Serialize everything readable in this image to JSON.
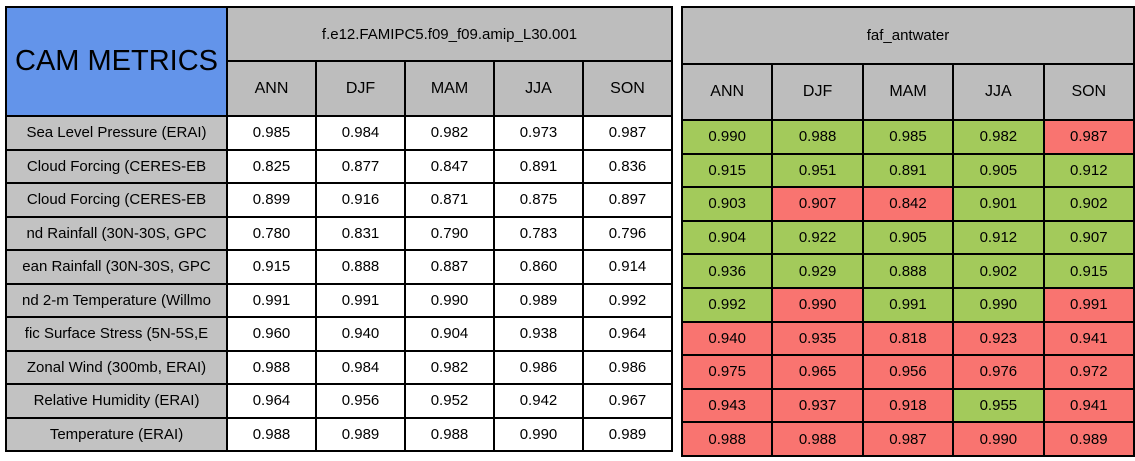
{
  "colors": {
    "title_bg": "#6394EA",
    "header_bg": "#BDBDBD",
    "label_bg": "#C2C2C2",
    "baseline_cell_bg": "#FFFFFF",
    "good": "#A3CA5B",
    "bad": "#F97470",
    "border": "#000000"
  },
  "chart_data": {
    "type": "table",
    "title": "CAM METRICS",
    "groups": [
      {
        "name": "f.e12.FAMIPC5.f09_f09.amip_L30.001",
        "seasons": [
          "ANN",
          "DJF",
          "MAM",
          "JJA",
          "SON"
        ]
      },
      {
        "name": "faf_antwater",
        "seasons": [
          "ANN",
          "DJF",
          "MAM",
          "JJA",
          "SON"
        ]
      }
    ],
    "rows": [
      {
        "label": "Sea Level Pressure (ERAI)",
        "baseline": [
          "0.985",
          "0.984",
          "0.982",
          "0.973",
          "0.987"
        ],
        "experiment": [
          "0.990",
          "0.988",
          "0.985",
          "0.982",
          "0.987"
        ],
        "experiment_status": [
          "good",
          "good",
          "good",
          "good",
          "bad"
        ]
      },
      {
        "label": "Cloud Forcing (CERES-EB",
        "baseline": [
          "0.825",
          "0.877",
          "0.847",
          "0.891",
          "0.836"
        ],
        "experiment": [
          "0.915",
          "0.951",
          "0.891",
          "0.905",
          "0.912"
        ],
        "experiment_status": [
          "good",
          "good",
          "good",
          "good",
          "good"
        ]
      },
      {
        "label": "Cloud Forcing (CERES-EB",
        "baseline": [
          "0.899",
          "0.916",
          "0.871",
          "0.875",
          "0.897"
        ],
        "experiment": [
          "0.903",
          "0.907",
          "0.842",
          "0.901",
          "0.902"
        ],
        "experiment_status": [
          "good",
          "bad",
          "bad",
          "good",
          "good"
        ]
      },
      {
        "label": "nd Rainfall (30N-30S, GPC",
        "baseline": [
          "0.780",
          "0.831",
          "0.790",
          "0.783",
          "0.796"
        ],
        "experiment": [
          "0.904",
          "0.922",
          "0.905",
          "0.912",
          "0.907"
        ],
        "experiment_status": [
          "good",
          "good",
          "good",
          "good",
          "good"
        ]
      },
      {
        "label": "ean Rainfall (30N-30S, GPC",
        "baseline": [
          "0.915",
          "0.888",
          "0.887",
          "0.860",
          "0.914"
        ],
        "experiment": [
          "0.936",
          "0.929",
          "0.888",
          "0.902",
          "0.915"
        ],
        "experiment_status": [
          "good",
          "good",
          "good",
          "good",
          "good"
        ]
      },
      {
        "label": "nd 2-m Temperature (Willmo",
        "baseline": [
          "0.991",
          "0.991",
          "0.990",
          "0.989",
          "0.992"
        ],
        "experiment": [
          "0.992",
          "0.990",
          "0.991",
          "0.990",
          "0.991"
        ],
        "experiment_status": [
          "good",
          "bad",
          "good",
          "good",
          "bad"
        ]
      },
      {
        "label": "fic Surface Stress (5N-5S,E",
        "baseline": [
          "0.960",
          "0.940",
          "0.904",
          "0.938",
          "0.964"
        ],
        "experiment": [
          "0.940",
          "0.935",
          "0.818",
          "0.923",
          "0.941"
        ],
        "experiment_status": [
          "bad",
          "bad",
          "bad",
          "bad",
          "bad"
        ]
      },
      {
        "label": "Zonal Wind (300mb, ERAI)",
        "baseline": [
          "0.988",
          "0.984",
          "0.982",
          "0.986",
          "0.986"
        ],
        "experiment": [
          "0.975",
          "0.965",
          "0.956",
          "0.976",
          "0.972"
        ],
        "experiment_status": [
          "bad",
          "bad",
          "bad",
          "bad",
          "bad"
        ]
      },
      {
        "label": "Relative Humidity (ERAI)",
        "baseline": [
          "0.964",
          "0.956",
          "0.952",
          "0.942",
          "0.967"
        ],
        "experiment": [
          "0.943",
          "0.937",
          "0.918",
          "0.955",
          "0.941"
        ],
        "experiment_status": [
          "bad",
          "bad",
          "bad",
          "good",
          "bad"
        ]
      },
      {
        "label": "Temperature (ERAI)",
        "baseline": [
          "0.988",
          "0.989",
          "0.988",
          "0.990",
          "0.989"
        ],
        "experiment": [
          "0.988",
          "0.988",
          "0.987",
          "0.990",
          "0.989"
        ],
        "experiment_status": [
          "bad",
          "bad",
          "bad",
          "bad",
          "bad"
        ]
      }
    ]
  }
}
